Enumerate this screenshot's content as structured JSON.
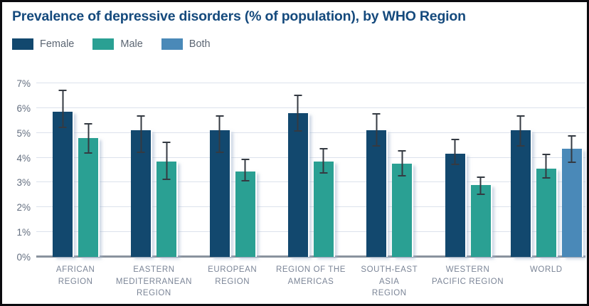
{
  "title": "Prevalence of depressive disorders (% of population), by WHO Region",
  "colors": {
    "title": "#154a7d",
    "female": "#12486e",
    "male": "#2aa093",
    "both": "#4a89b8",
    "axis_tick_label": "#646f80",
    "x_label": "#7b8597",
    "gridline": "#dce2ec",
    "zero_line": "#8a939e",
    "error_bar": "#343a42",
    "background": "#ffffff",
    "frame_border": "#0b0b0f"
  },
  "legend": [
    {
      "label": "Female",
      "color": "#12486e"
    },
    {
      "label": "Male",
      "color": "#2aa093"
    },
    {
      "label": "Both",
      "color": "#4a89b8"
    }
  ],
  "chart_data": {
    "type": "bar",
    "title": "Prevalence of depressive disorders (% of population), by WHO Region",
    "unit": "%",
    "grid": true,
    "legend_position": "top-left",
    "ylim": [
      0,
      7
    ],
    "y_ticks": [
      "0%",
      "1%",
      "2%",
      "3%",
      "4%",
      "5%",
      "6%",
      "7%"
    ],
    "categories": [
      "AFRICAN\nREGION",
      "EASTERN\nMEDITERRANEAN\nREGION",
      "EUROPEAN\nREGION",
      "REGION OF THE\nAMERICAS",
      "SOUTH-EAST\nASIA\nREGION",
      "WESTERN\nPACIFIC REGION",
      "WORLD"
    ],
    "series": [
      {
        "name": "Female",
        "color": "#12486e",
        "values": [
          5.85,
          5.1,
          5.1,
          5.8,
          5.1,
          4.15,
          5.1
        ],
        "err_low": [
          5.2,
          4.2,
          4.2,
          5.05,
          4.45,
          3.7,
          4.45
        ],
        "err_high": [
          6.75,
          5.7,
          5.7,
          6.55,
          5.8,
          4.75,
          5.7
        ]
      },
      {
        "name": "Male",
        "color": "#2aa093",
        "values": [
          4.8,
          3.85,
          3.45,
          3.85,
          3.75,
          2.9,
          3.55
        ],
        "err_low": [
          4.15,
          3.1,
          3.05,
          3.35,
          3.25,
          2.5,
          3.15
        ],
        "err_high": [
          5.4,
          4.65,
          3.95,
          4.4,
          4.3,
          3.25,
          4.15
        ]
      },
      {
        "name": "Both",
        "color": "#4a89b8",
        "values": [
          null,
          null,
          null,
          null,
          null,
          null,
          4.35
        ],
        "err_low": [
          null,
          null,
          null,
          null,
          null,
          null,
          3.8
        ],
        "err_high": [
          null,
          null,
          null,
          null,
          null,
          null,
          4.9
        ]
      }
    ]
  }
}
